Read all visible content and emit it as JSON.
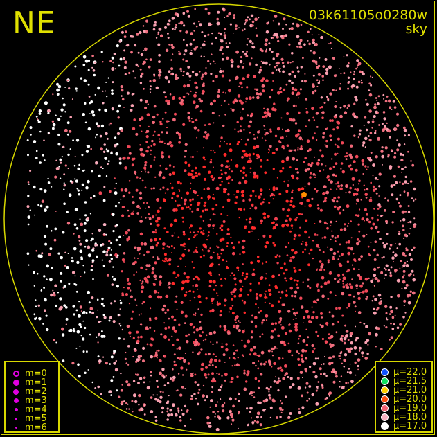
{
  "orientation_label": "NE",
  "frame_id": "03k61105o0280w",
  "image_type": "sky",
  "colors": {
    "border": "#d8d800",
    "horizon_circle": "#d8d800",
    "text": "#e0e000",
    "background": "#000000"
  },
  "magnitude_legend": [
    {
      "label": "m=0",
      "symbol": "ring",
      "color": "#e000e0"
    },
    {
      "label": "m=1",
      "symbol": "dot",
      "color": "#e000e0"
    },
    {
      "label": "m=2",
      "symbol": "dot",
      "color": "#e000e0"
    },
    {
      "label": "m=3",
      "symbol": "dot",
      "color": "#e000e0"
    },
    {
      "label": "m=4",
      "symbol": "dot",
      "color": "#e000e0"
    },
    {
      "label": "m=5",
      "symbol": "dot",
      "color": "#e000e0"
    },
    {
      "label": "m=6",
      "symbol": "dot",
      "color": "#e000e0"
    }
  ],
  "sky_brightness_legend": [
    {
      "label": "μ=22.0",
      "color": "#1050ff"
    },
    {
      "label": "μ=21.5",
      "color": "#10e060"
    },
    {
      "label": "μ=21.0",
      "color": "#ffd000"
    },
    {
      "label": "μ=20.0",
      "color": "#ff5010"
    },
    {
      "label": "μ=19.0",
      "color": "#f06070"
    },
    {
      "label": "μ=18.0",
      "color": "#f8b0c0"
    },
    {
      "label": "μ=17.0",
      "color": "#ffffff"
    }
  ]
}
